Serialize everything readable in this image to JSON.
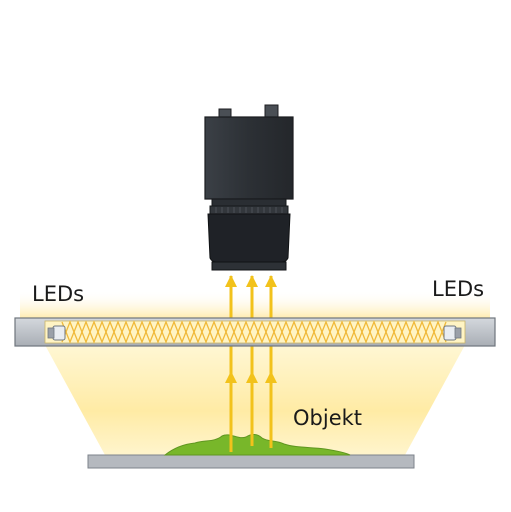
{
  "labels": {
    "leds_left": "LEDs",
    "leds_right": "LEDs",
    "object": "Objekt"
  },
  "colors": {
    "light_glow": "#fff0b8",
    "light_beam": "#f2c21b",
    "led_bar": "#b9bec6",
    "camera_body": "#2f3338",
    "lens": "#1f2227",
    "object": "#78b72a",
    "base_plate": "#b5b9bf"
  },
  "icons": {
    "camera": "camera-icon",
    "led_left": "led-bulb-icon",
    "led_right": "led-bulb-icon"
  }
}
